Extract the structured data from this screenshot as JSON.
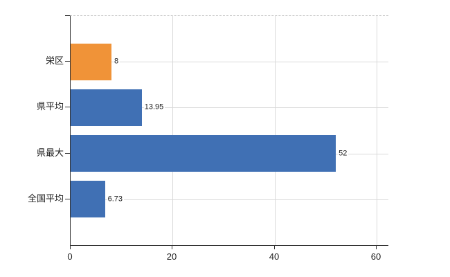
{
  "chart_data": {
    "type": "bar",
    "orientation": "horizontal",
    "title": "",
    "categories": [
      "栄区",
      "県平均",
      "県最大",
      "全国平均"
    ],
    "values": [
      8,
      13.95,
      52,
      6.73
    ],
    "value_labels": [
      "8",
      "13.95",
      "52",
      "6.73"
    ],
    "bar_colors": [
      "#f09338",
      "#4070b4",
      "#4070b4",
      "#4070b4"
    ],
    "x_tick_labels": [
      "0",
      "20",
      "40",
      "60"
    ],
    "x_tick_values": [
      0,
      20,
      40,
      60
    ],
    "xlim": [
      0,
      62.3
    ],
    "grid": true,
    "legend_position": "none"
  },
  "colors": {
    "bar_blue": "#4070b4",
    "bar_orange": "#f09338",
    "gridline": "#d9d9d9",
    "axis": "#333333",
    "text": "#1d1d1d",
    "background": "#ffffff"
  }
}
